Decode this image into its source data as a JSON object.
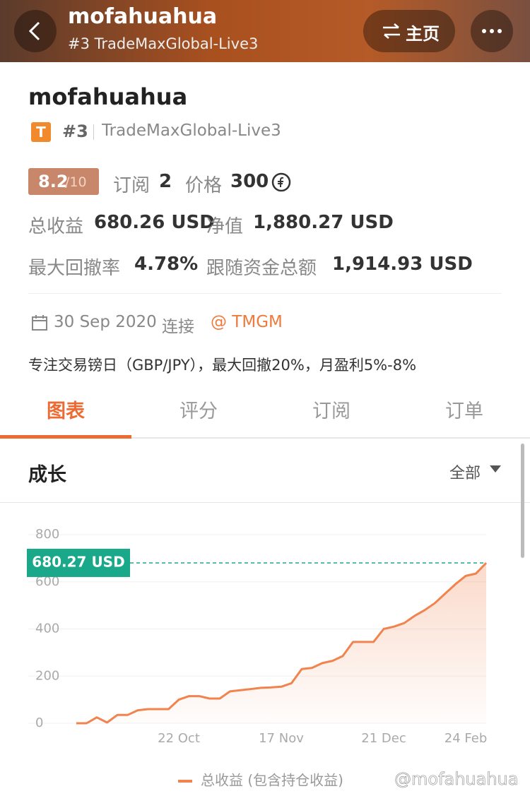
{
  "header": {
    "title": "mofahuahua",
    "subtitle": "#3 TradeMaxGlobal-Live3",
    "home_button": "主页"
  },
  "profile": {
    "name": "mofahuahua",
    "badge": "T",
    "rank": "#3",
    "server": "TradeMaxGlobal-Live3",
    "rating": "8.2",
    "rating_max": "/10",
    "subscriptions_label": "订阅",
    "subscriptions": "2",
    "price_label": "价格",
    "price": "300",
    "total_profit_label": "总收益",
    "total_profit": "680.26 USD",
    "equity_label": "净值",
    "equity": "1,880.27 USD",
    "max_drawdown_label": "最大回撤率",
    "max_drawdown": "4.78%",
    "follower_funds_label": "跟随资金总额",
    "follower_funds": "1,914.93 USD",
    "since": "30 Sep 2020",
    "connect": "连接",
    "broker": "@ TMGM",
    "description": "专注交易镑日（GBP/JPY），最大回撤20%，月盈利5%-8%"
  },
  "tabs": [
    "图表",
    "评分",
    "订阅",
    "订单"
  ],
  "section": {
    "title": "成长",
    "filter": "全部"
  },
  "chart_data": {
    "type": "area",
    "categories": [
      null,
      null,
      null,
      null,
      null,
      null,
      null,
      null,
      null,
      null,
      "22 Oct",
      null,
      null,
      null,
      null,
      null,
      null,
      null,
      null,
      null,
      "17 Nov",
      null,
      null,
      null,
      null,
      null,
      null,
      null,
      null,
      null,
      "21 Dec",
      null,
      null,
      null,
      null,
      null,
      null,
      null,
      "24 Feb",
      null,
      null
    ],
    "series": [
      {
        "name": "总收益 (包含持仓收益)",
        "color": "#f0834e",
        "values": [
          0,
          0,
          25,
          3,
          35,
          35,
          55,
          60,
          60,
          60,
          100,
          115,
          115,
          105,
          105,
          135,
          140,
          145,
          150,
          152,
          155,
          170,
          230,
          235,
          255,
          265,
          285,
          345,
          345,
          345,
          400,
          410,
          425,
          455,
          480,
          510,
          550,
          590,
          625,
          635,
          680.27
        ],
        "value_labels": [
          null,
          null,
          null,
          null,
          null,
          null,
          null,
          null,
          null,
          null,
          null,
          null,
          null,
          null,
          null,
          null,
          null,
          null,
          null,
          null,
          null,
          null,
          null,
          null,
          null,
          null,
          null,
          null,
          null,
          null,
          null,
          null,
          null,
          null,
          null,
          null,
          null,
          null,
          null,
          null,
          "680.27 USD"
        ]
      }
    ],
    "ylim": [
      0,
      800
    ],
    "yticks": [
      0,
      200,
      400,
      600,
      800
    ],
    "grid": true,
    "label_color": "#1aa88a"
  },
  "watermark": "@mofahuahua"
}
